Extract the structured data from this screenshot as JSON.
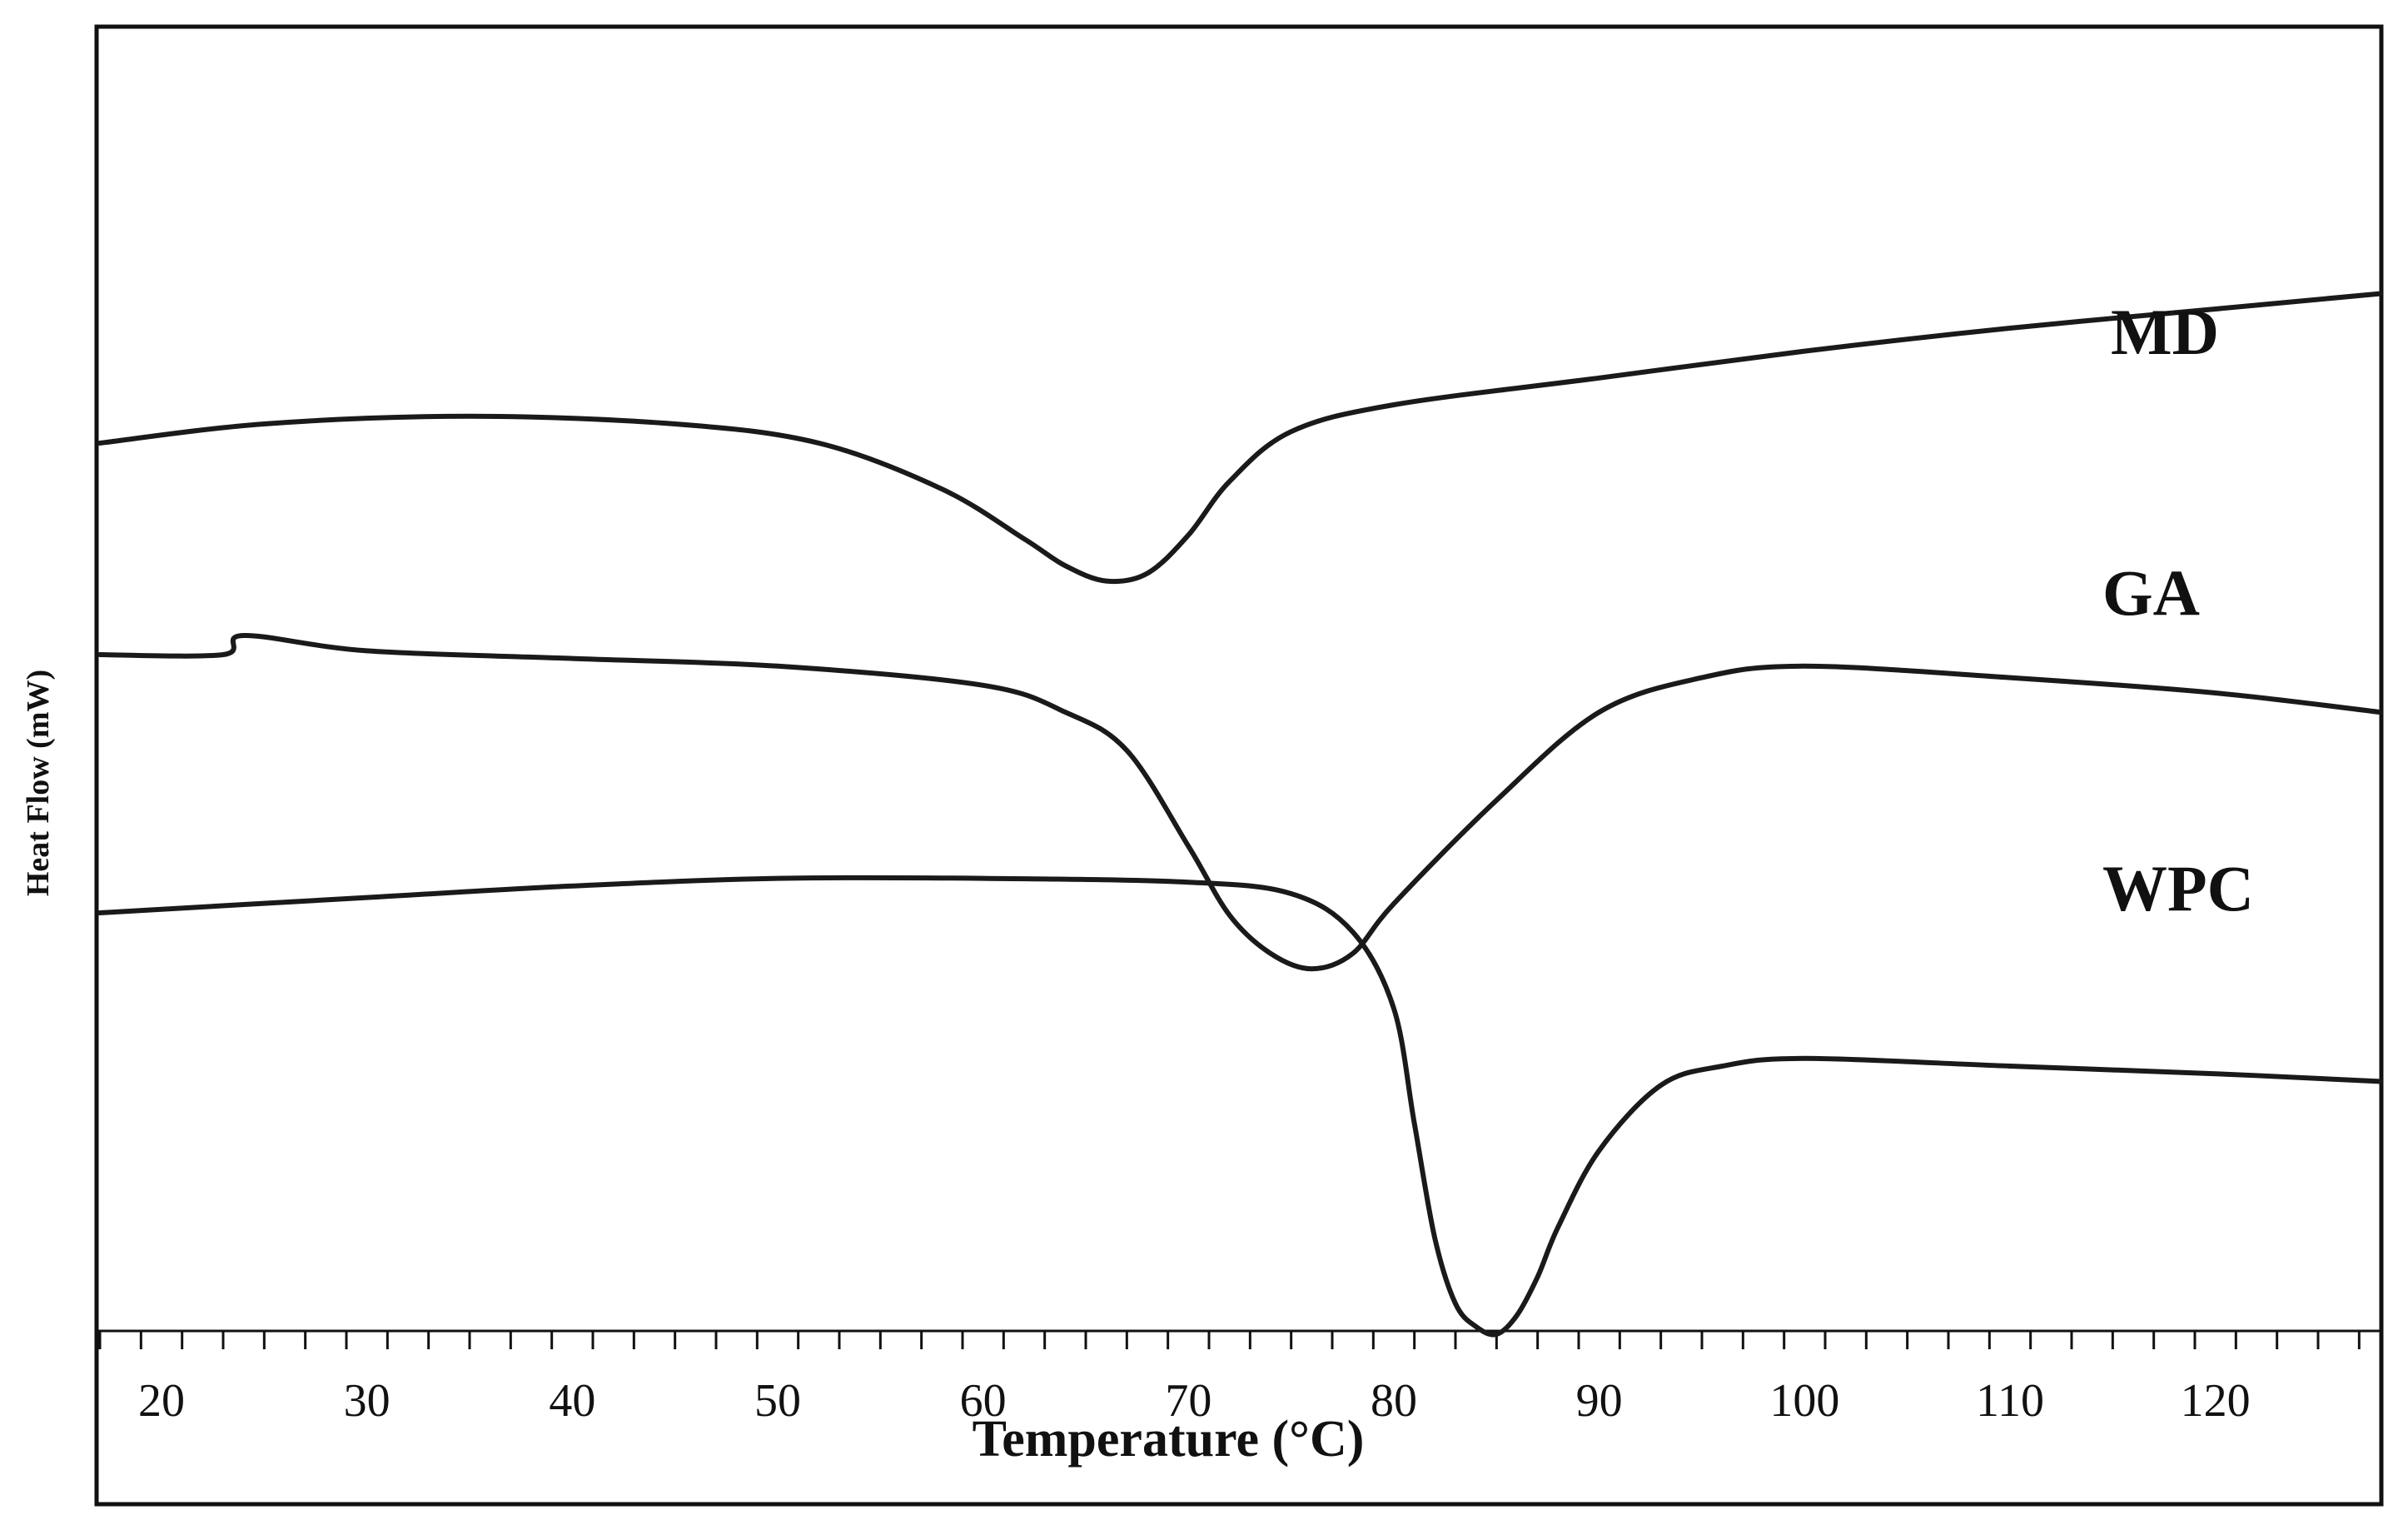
{
  "chart_data": {
    "type": "line",
    "title": "",
    "xlabel": "Temperature (°C)",
    "ylabel": "Heat Flow (mW)",
    "xlim": [
      17,
      128
    ],
    "xticks": [
      20,
      30,
      40,
      50,
      60,
      70,
      80,
      90,
      100,
      110,
      120
    ],
    "grid": false,
    "legend": "inline-labels",
    "series": [
      {
        "name": "MD",
        "x": [
          17,
          25,
          35,
          45,
          52,
          58,
          62,
          64,
          66,
          68,
          70,
          72,
          75,
          80,
          90,
          100,
          110,
          120,
          128
        ],
        "y": [
          0.0,
          0.05,
          0.07,
          0.05,
          0.0,
          -0.12,
          -0.25,
          -0.32,
          -0.36,
          -0.34,
          -0.24,
          -0.1,
          0.03,
          0.1,
          0.17,
          0.24,
          0.3,
          0.35,
          0.39
        ]
      },
      {
        "name": "GA",
        "x": [
          17,
          23,
          24,
          30,
          40,
          50,
          60,
          64,
          67,
          70,
          72,
          74,
          76,
          78,
          80,
          85,
          90,
          95,
          100,
          110,
          120,
          128
        ],
        "y": [
          0.0,
          0.0,
          0.05,
          0.01,
          -0.01,
          -0.03,
          -0.08,
          -0.15,
          -0.25,
          -0.5,
          -0.68,
          -0.78,
          -0.82,
          -0.78,
          -0.65,
          -0.38,
          -0.15,
          -0.06,
          -0.03,
          -0.06,
          -0.1,
          -0.15
        ]
      },
      {
        "name": "WPC",
        "x": [
          17,
          30,
          40,
          50,
          60,
          70,
          75,
          78,
          80,
          81,
          82,
          83,
          84,
          85,
          86,
          87,
          88,
          90,
          93,
          96,
          100,
          110,
          120,
          128
        ],
        "y": [
          0.0,
          0.04,
          0.07,
          0.09,
          0.09,
          0.08,
          0.05,
          -0.05,
          -0.25,
          -0.55,
          -0.85,
          -1.02,
          -1.08,
          -1.1,
          -1.05,
          -0.95,
          -0.82,
          -0.62,
          -0.45,
          -0.4,
          -0.38,
          -0.4,
          -0.42,
          -0.44
        ]
      }
    ],
    "colors": {
      "line": "#1a1a1a",
      "frame": "#111111"
    }
  }
}
